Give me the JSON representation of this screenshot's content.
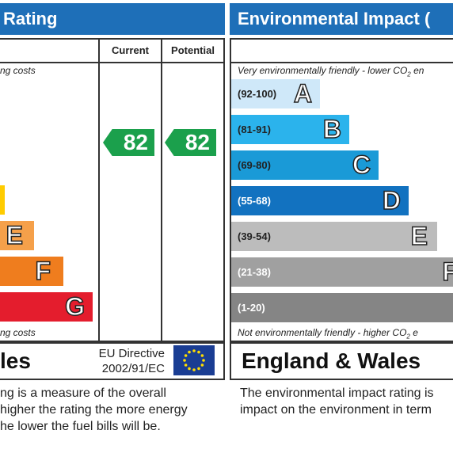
{
  "left_panel": {
    "title": "Rating",
    "col_current": "Current",
    "col_potential": "Potential",
    "top_note": "ng costs",
    "bottom_note": "ng costs",
    "bands": [
      {
        "letter": "",
        "color": "#ffcc00"
      },
      {
        "letter": "E",
        "color": "#f5a04a"
      },
      {
        "letter": "F",
        "color": "#ef7d1e"
      },
      {
        "letter": "G",
        "color": "#e41d2d"
      }
    ],
    "current_value": "82",
    "potential_value": "82",
    "arrow_color": "#1ba04c",
    "region": "les",
    "eu_line1": "EU Directive",
    "eu_line2": "2002/91/EC",
    "eu_flag_icon": "eu-flag-icon",
    "description_lines": [
      "ng is a measure of the overall",
      "higher the rating the more energy",
      "he lower the fuel bills will be."
    ]
  },
  "right_panel": {
    "title": "Environmental Impact (",
    "top_note_prefix": "Very environmentally friendly - lower CO",
    "top_note_sub": "2",
    "top_note_suffix": " en",
    "bottom_note_prefix": "Not environmentally friendly - higher CO",
    "bottom_note_sub": "2",
    "bottom_note_suffix": " e",
    "bands": [
      {
        "range": "(92-100)",
        "letter": "A",
        "color": "#cfe8f9"
      },
      {
        "range": "(81-91)",
        "letter": "B",
        "color": "#2bb3ec"
      },
      {
        "range": "(69-80)",
        "letter": "C",
        "color": "#1a9ad7"
      },
      {
        "range": "(55-68)",
        "letter": "D",
        "color": "#1272c0"
      },
      {
        "range": "(39-54)",
        "letter": "E",
        "color": "#bcbcbc"
      },
      {
        "range": "(21-38)",
        "letter": "F",
        "color": "#a0a0a0"
      },
      {
        "range": "(1-20)",
        "letter": "",
        "color": "#858585"
      }
    ],
    "region": "England & Wales",
    "description_lines": [
      "The environmental impact rating is",
      "impact on the environment in term"
    ]
  }
}
